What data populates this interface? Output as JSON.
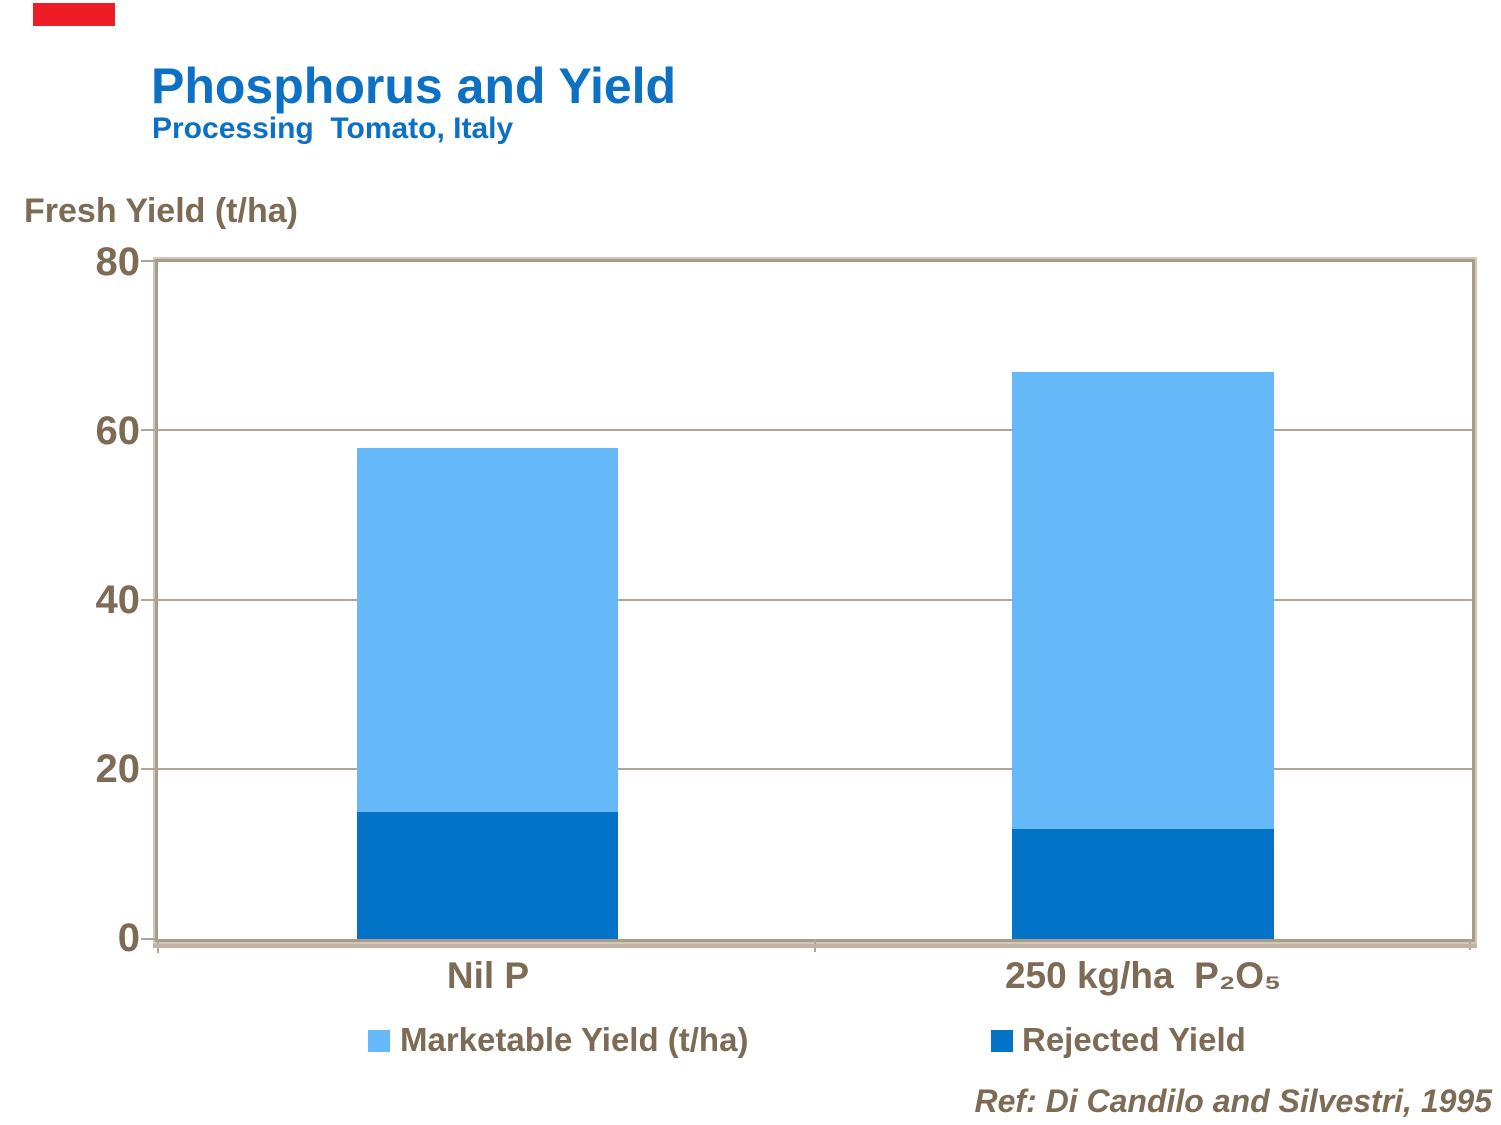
{
  "slide": {
    "title": "Phosphorus and Yield",
    "subtitle": "Processing  Tomato, Italy",
    "y_axis_title": "Fresh Yield (t/ha)",
    "reference": "Ref: Di Candilo and Silvestri, 1995"
  },
  "colors": {
    "title_blue": "#0c70c4",
    "text_brown": "#7d6b55",
    "marketable_blue": "#66b9f9",
    "rejected_blue": "#0273c6",
    "gridline": "#b2a496",
    "plot_border": "#a99b89",
    "corner_red": "#ee1c25"
  },
  "y_ticks": {
    "t80": "80",
    "t60": "60",
    "t40": "40",
    "t20": "20",
    "t0": "0"
  },
  "x_labels": {
    "cat0": "Nil P",
    "cat1": "250 kg/ha  P₂O₅"
  },
  "legend": {
    "marketable": "Marketable Yield (t/ha)",
    "rejected": "Rejected Yield"
  },
  "chart_data": {
    "type": "bar",
    "stacked": true,
    "title": "Phosphorus and Yield",
    "subtitle": "Processing Tomato, Italy",
    "ylabel": "Fresh Yield (t/ha)",
    "xlabel": "",
    "categories": [
      "Nil P",
      "250 kg/ha P₂O₅"
    ],
    "series": [
      {
        "name": "Rejected Yield",
        "color": "#0273c6",
        "values": [
          15,
          13
        ]
      },
      {
        "name": "Marketable Yield (t/ha)",
        "color": "#66b9f9",
        "values": [
          43,
          54
        ]
      }
    ],
    "stack_totals": [
      58,
      67
    ],
    "ylim": [
      0,
      80
    ],
    "yticks": [
      0,
      20,
      40,
      60,
      80
    ],
    "gridlines": [
      20,
      40,
      60
    ],
    "grid": true,
    "legend_position": "bottom",
    "annotation": "Ref: Di Candilo and Silvestri, 1995"
  }
}
